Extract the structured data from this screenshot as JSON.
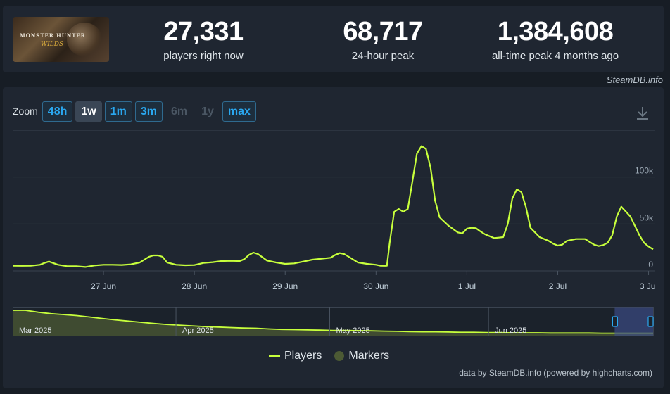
{
  "game": {
    "logo_line1": "MONSTER HUNTER",
    "logo_line2": "WILDS"
  },
  "stats": [
    {
      "value": "27,331",
      "label": "players right now"
    },
    {
      "value": "68,717",
      "label": "24-hour peak"
    },
    {
      "value": "1,384,608",
      "label": "all-time peak 4 months ago"
    }
  ],
  "credit": "SteamDB.info",
  "zoom": {
    "label": "Zoom",
    "buttons": [
      {
        "label": "48h",
        "state": "normal"
      },
      {
        "label": "1w",
        "state": "active"
      },
      {
        "label": "1m",
        "state": "normal"
      },
      {
        "label": "3m",
        "state": "normal"
      },
      {
        "label": "6m",
        "state": "disabled"
      },
      {
        "label": "1y",
        "state": "disabled"
      },
      {
        "label": "max",
        "state": "normal"
      }
    ]
  },
  "legend": {
    "players": "Players",
    "markers": "Markers"
  },
  "footer": "data by SteamDB.info (powered by highcharts.com)",
  "colors": {
    "line": "#c7ff3c",
    "navigator_fill": "#4c5a34",
    "accent": "#2aa8f0"
  },
  "chart_data": {
    "type": "line",
    "series": [
      {
        "name": "Players",
        "x": [
          26.0,
          26.1,
          26.2,
          26.3,
          26.35,
          26.4,
          26.5,
          26.6,
          26.7,
          26.8,
          26.9,
          27.0,
          27.1,
          27.2,
          27.3,
          27.4,
          27.5,
          27.55,
          27.6,
          27.65,
          27.7,
          27.8,
          27.9,
          28.0,
          28.1,
          28.2,
          28.3,
          28.4,
          28.5,
          28.55,
          28.6,
          28.65,
          28.7,
          28.8,
          28.9,
          29.0,
          29.1,
          29.2,
          29.3,
          29.4,
          29.5,
          29.55,
          29.6,
          29.65,
          29.7,
          29.8,
          29.9,
          30.0,
          30.05,
          30.1,
          30.12,
          30.15,
          30.2,
          30.25,
          30.3,
          30.35,
          30.4,
          30.45,
          30.5,
          30.55,
          30.6,
          30.65,
          30.7,
          30.8,
          30.9,
          30.95,
          31.0,
          31.05,
          31.1,
          31.15,
          31.2,
          31.3,
          31.35,
          31.4,
          31.45,
          31.5,
          31.55,
          31.6,
          31.65,
          31.7,
          31.8,
          31.9,
          31.95,
          32.0,
          32.05,
          32.1,
          32.2,
          32.3,
          32.35,
          32.4,
          32.45,
          32.5,
          32.55,
          32.6,
          32.65,
          32.7,
          32.8,
          32.9,
          32.95,
          33.0,
          33.05
        ],
        "y": [
          5500,
          5400,
          5500,
          6500,
          8500,
          10000,
          6500,
          5000,
          5000,
          4200,
          5800,
          6500,
          6500,
          6300,
          7000,
          9000,
          15000,
          16500,
          16500,
          15000,
          9000,
          6500,
          6000,
          6200,
          8500,
          9300,
          10500,
          10800,
          10500,
          12500,
          17000,
          19500,
          18000,
          11000,
          9000,
          7500,
          8000,
          10000,
          12000,
          13000,
          14000,
          17000,
          19000,
          18000,
          15000,
          9000,
          7500,
          6500,
          5500,
          5400,
          5500,
          30000,
          63000,
          66000,
          63000,
          66000,
          95000,
          125000,
          133000,
          130000,
          110000,
          75000,
          57000,
          48000,
          41000,
          40000,
          45000,
          46000,
          45500,
          42000,
          39000,
          35000,
          35500,
          36000,
          50000,
          77000,
          87000,
          84000,
          68000,
          46000,
          36000,
          32000,
          29000,
          27000,
          28000,
          32000,
          34000,
          34000,
          31000,
          28000,
          26500,
          27500,
          30000,
          38000,
          58000,
          68500,
          58000,
          38000,
          30000,
          26000,
          23000
        ]
      }
    ],
    "x_ticks": [
      "27 Jun",
      "28 Jun",
      "29 Jun",
      "30 Jun",
      "1 Jul",
      "2 Jul",
      "3 Jul"
    ],
    "y_ticks": [
      "0",
      "50k",
      "100k"
    ],
    "ylim": [
      0,
      150000
    ],
    "navigator": {
      "labels": [
        "Mar 2025",
        "Apr 2025",
        "May 2025",
        "Jun 2025"
      ],
      "values": [
        1.0,
        1.0,
        0.92,
        0.86,
        0.82,
        0.78,
        0.72,
        0.66,
        0.6,
        0.55,
        0.5,
        0.45,
        0.41,
        0.38,
        0.35,
        0.32,
        0.3,
        0.28,
        0.26,
        0.25,
        0.22,
        0.2,
        0.19,
        0.18,
        0.17,
        0.16,
        0.16,
        0.15,
        0.14,
        0.13,
        0.12,
        0.11,
        0.1,
        0.1,
        0.09,
        0.08,
        0.08,
        0.07,
        0.07,
        0.06,
        0.06,
        0.06,
        0.05,
        0.05,
        0.05,
        0.05,
        0.04,
        0.04,
        0.04,
        0.04,
        0.04
      ],
      "selection_start": 0.94
    },
    "grid": true
  }
}
